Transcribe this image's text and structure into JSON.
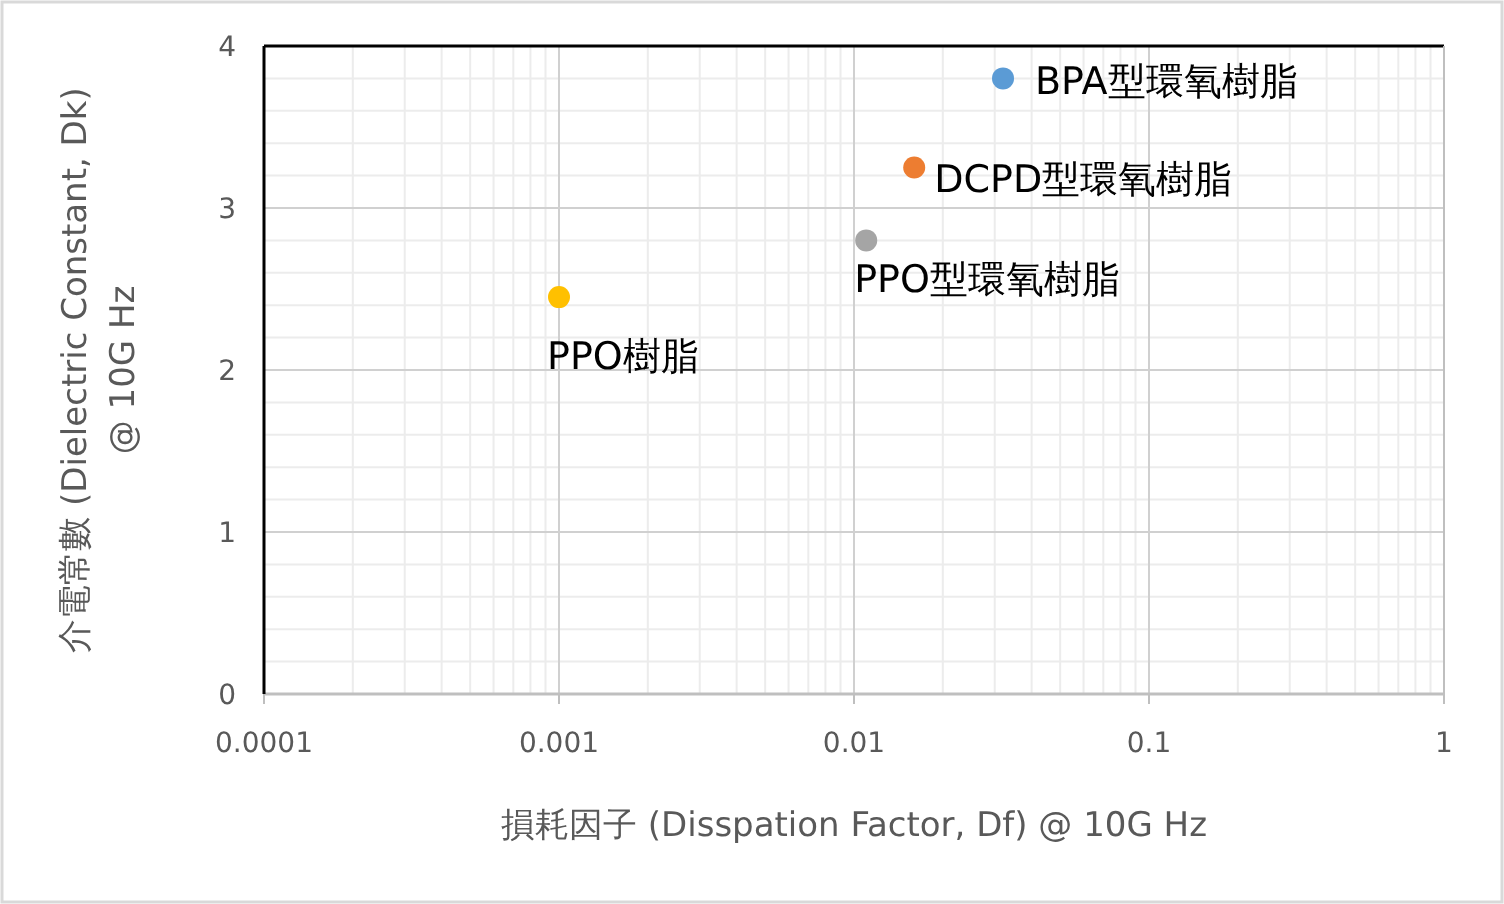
{
  "chart_data": {
    "type": "scatter",
    "xlabel": "損耗因子 (Disspation Factor, Df) @ 10G Hz",
    "ylabel": "介電常數 (Dielectric Constant, Dk) @ 10G Hz",
    "log": "x",
    "xlim": [
      0.0001,
      1
    ],
    "xticks": [
      0.0001,
      0.001,
      0.01,
      0.1,
      1
    ],
    "ylim": [
      0,
      4
    ],
    "yticks": [
      0,
      1,
      2,
      3,
      4
    ],
    "grid": true,
    "marker": "circle",
    "series": [
      {
        "name": "BPA型環氧樹脂",
        "color": "#5b9bd5",
        "x": [
          0.032
        ],
        "values": [
          3.8
        ]
      },
      {
        "name": "DCPD型環氧樹脂",
        "color": "#ed7d31",
        "x": [
          0.016
        ],
        "values": [
          3.25
        ]
      },
      {
        "name": "PPO型環氧樹脂",
        "color": "#a5a5a5",
        "x": [
          0.011
        ],
        "values": [
          2.8
        ]
      },
      {
        "name": "PPO樹脂",
        "color": "#ffc000",
        "x": [
          0.001
        ],
        "values": [
          2.45
        ]
      }
    ]
  }
}
